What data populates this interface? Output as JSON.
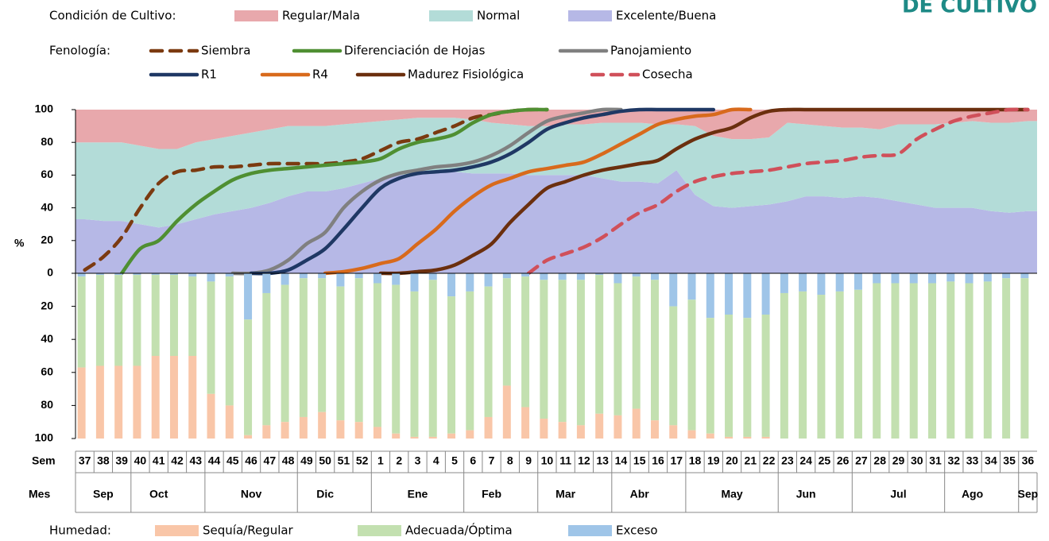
{
  "title_fragment": "DE CULTIVO",
  "chart_data": [
    {
      "type": "area",
      "legend_label": "Condición de Cultivo:",
      "ylabel": "%",
      "ylim": [
        0,
        100
      ],
      "yticks": [
        0,
        20,
        40,
        60,
        80,
        100
      ],
      "series": [
        {
          "name": "Regular/Mala",
          "color": "#e8a8ac",
          "values": [
            20,
            20,
            20,
            22,
            24,
            24,
            20,
            18,
            16,
            14,
            12,
            10,
            10,
            10,
            9,
            8,
            7,
            6,
            5,
            5,
            5,
            6,
            8,
            9,
            10,
            10,
            9,
            9,
            8,
            8,
            8,
            9,
            9,
            10,
            16,
            18,
            18,
            17,
            8,
            9,
            10,
            11,
            11,
            12,
            9,
            9,
            9,
            8,
            7,
            8,
            8,
            7
          ]
        },
        {
          "name": "Normal",
          "color": "#b3dcd8",
          "values": [
            47,
            48,
            48,
            48,
            48,
            46,
            47,
            46,
            46,
            46,
            45,
            43,
            40,
            40,
            39,
            37,
            35,
            34,
            34,
            33,
            33,
            33,
            31,
            30,
            30,
            30,
            31,
            31,
            34,
            36,
            36,
            36,
            28,
            42,
            43,
            42,
            41,
            41,
            48,
            44,
            43,
            43,
            42,
            42,
            47,
            49,
            51,
            52,
            53,
            54,
            55,
            55
          ]
        },
        {
          "name": "Excelente/Buena",
          "color": "#b6b8e6",
          "values": [
            33,
            32,
            32,
            30,
            28,
            30,
            33,
            36,
            38,
            40,
            43,
            47,
            50,
            50,
            52,
            55,
            58,
            60,
            61,
            62,
            62,
            61,
            61,
            61,
            60,
            60,
            60,
            60,
            58,
            56,
            56,
            55,
            63,
            48,
            41,
            40,
            41,
            42,
            44,
            47,
            47,
            46,
            47,
            46,
            44,
            42,
            40,
            40,
            40,
            38,
            37,
            38
          ]
        }
      ]
    },
    {
      "type": "line",
      "legend_label": "Fenología:",
      "series": [
        {
          "name": "Siembra",
          "color": "#7b3a10",
          "dash": true,
          "values": [
            2,
            10,
            22,
            40,
            55,
            62,
            63,
            65,
            65,
            66,
            67,
            67,
            67,
            67,
            68,
            70,
            75,
            80,
            82,
            86,
            90,
            95,
            97,
            99,
            100,
            100,
            null,
            null,
            null,
            null,
            null,
            null,
            null,
            null,
            null,
            null,
            null,
            null,
            null,
            null,
            null,
            null,
            null,
            null,
            null,
            null,
            null,
            null,
            null,
            null,
            null,
            null
          ]
        },
        {
          "name": "Diferenciación de Hojas",
          "color": "#4f8f32",
          "dash": false,
          "values": [
            null,
            null,
            0,
            15,
            20,
            32,
            42,
            50,
            57,
            61,
            63,
            64,
            65,
            66,
            67,
            68,
            70,
            76,
            80,
            82,
            85,
            92,
            97,
            99,
            100,
            100,
            null,
            null,
            null,
            null,
            null,
            null,
            null,
            null,
            null,
            null,
            null,
            null,
            null,
            null,
            null,
            null,
            null,
            null,
            null,
            null,
            null,
            null,
            null,
            null,
            null,
            null
          ]
        },
        {
          "name": "Panojamiento",
          "color": "#808080",
          "dash": false,
          "values": [
            null,
            null,
            null,
            null,
            null,
            null,
            null,
            null,
            0,
            0,
            2,
            8,
            18,
            25,
            40,
            50,
            57,
            61,
            63,
            65,
            66,
            68,
            72,
            78,
            86,
            93,
            96,
            98,
            100,
            100,
            null,
            null,
            null,
            null,
            null,
            null,
            null,
            null,
            null,
            null,
            null,
            null,
            null,
            null,
            null,
            null,
            null,
            null,
            null,
            null,
            null,
            null
          ]
        },
        {
          "name": "R1",
          "color": "#1f3864",
          "dash": false,
          "values": [
            null,
            null,
            null,
            null,
            null,
            null,
            null,
            null,
            null,
            0,
            0,
            2,
            8,
            15,
            27,
            40,
            52,
            58,
            61,
            62,
            63,
            65,
            68,
            73,
            80,
            88,
            92,
            95,
            97,
            99,
            100,
            100,
            100,
            100,
            100,
            null,
            null,
            null,
            null,
            null,
            null,
            null,
            null,
            null,
            null,
            null,
            null,
            null,
            null,
            null,
            null,
            null
          ]
        },
        {
          "name": "R4",
          "color": "#d86a1c",
          "dash": false,
          "values": [
            null,
            null,
            null,
            null,
            null,
            null,
            null,
            null,
            null,
            null,
            null,
            null,
            null,
            0,
            1,
            3,
            6,
            9,
            18,
            27,
            38,
            47,
            54,
            58,
            62,
            64,
            66,
            68,
            73,
            79,
            85,
            91,
            94,
            96,
            97,
            100,
            100,
            null,
            null,
            null,
            null,
            null,
            null,
            null,
            null,
            null,
            null,
            null,
            null,
            null,
            null,
            null
          ]
        },
        {
          "name": "Madurez Fisiológica",
          "color": "#6b2f0e",
          "dash": false,
          "values": [
            null,
            null,
            null,
            null,
            null,
            null,
            null,
            null,
            null,
            null,
            null,
            null,
            null,
            null,
            null,
            null,
            0,
            0,
            1,
            2,
            5,
            11,
            18,
            31,
            42,
            52,
            56,
            60,
            63,
            65,
            67,
            69,
            76,
            82,
            86,
            89,
            95,
            99,
            100,
            100,
            100,
            100,
            100,
            100,
            100,
            100,
            100,
            100,
            100,
            100,
            100,
            100
          ]
        },
        {
          "name": "Cosecha",
          "color": "#d0505a",
          "dash": true,
          "values": [
            null,
            null,
            null,
            null,
            null,
            null,
            null,
            null,
            null,
            null,
            null,
            null,
            null,
            null,
            null,
            null,
            null,
            null,
            null,
            null,
            null,
            null,
            null,
            null,
            0,
            8,
            12,
            16,
            22,
            30,
            37,
            42,
            50,
            56,
            59,
            61,
            62,
            63,
            65,
            67,
            68,
            69,
            71,
            72,
            73,
            82,
            88,
            93,
            96,
            98,
            100,
            100
          ]
        }
      ]
    },
    {
      "type": "bar",
      "legend_label": "Humedad:",
      "xlabel": "Sem",
      "month_label": "Mes",
      "categories": [
        "37",
        "38",
        "39",
        "40",
        "41",
        "42",
        "43",
        "44",
        "45",
        "46",
        "47",
        "48",
        "49",
        "50",
        "51",
        "52",
        "1",
        "2",
        "3",
        "4",
        "5",
        "6",
        "7",
        "8",
        "9",
        "10",
        "11",
        "12",
        "13",
        "14",
        "15",
        "16",
        "17",
        "18",
        "19",
        "20",
        "21",
        "22",
        "23",
        "24",
        "25",
        "26",
        "27",
        "28",
        "29",
        "30",
        "31",
        "32",
        "33",
        "34",
        "35",
        "36"
      ],
      "months": [
        null,
        "Sep",
        null,
        null,
        "Oct",
        null,
        null,
        null,
        null,
        "Nov",
        null,
        null,
        null,
        "Dic",
        null,
        null,
        null,
        null,
        "Ene",
        null,
        null,
        null,
        "Feb",
        null,
        null,
        null,
        "Mar",
        null,
        null,
        null,
        "Abr",
        null,
        null,
        null,
        null,
        "May",
        null,
        null,
        null,
        "Jun",
        null,
        null,
        null,
        null,
        "Jul",
        null,
        null,
        null,
        "Ago",
        null,
        null,
        "Sep"
      ],
      "ylim": [
        0,
        100
      ],
      "yticks": [
        20,
        40,
        60,
        80,
        100
      ],
      "series": [
        {
          "name": "Sequía/Regular",
          "color": "#f9c6a8",
          "values": [
            43,
            44,
            44,
            44,
            50,
            50,
            50,
            27,
            20,
            2,
            8,
            10,
            13,
            16,
            11,
            10,
            7,
            3,
            1,
            1,
            3,
            5,
            13,
            32,
            19,
            12,
            10,
            8,
            15,
            14,
            18,
            11,
            8,
            5,
            3,
            1,
            1,
            1,
            0,
            0,
            0,
            0,
            0,
            0,
            0,
            0,
            0,
            0,
            0,
            0,
            0,
            0
          ]
        },
        {
          "name": "Adecuada/Óptima",
          "color": "#c3e0b0",
          "values": [
            55,
            55,
            55,
            55,
            49,
            49,
            48,
            68,
            78,
            70,
            80,
            83,
            84,
            81,
            81,
            87,
            87,
            90,
            88,
            95,
            83,
            84,
            79,
            65,
            79,
            84,
            86,
            88,
            84,
            80,
            80,
            85,
            72,
            79,
            70,
            74,
            72,
            74,
            88,
            89,
            87,
            89,
            90,
            94,
            94,
            94,
            94,
            95,
            94,
            95,
            97,
            97
          ]
        },
        {
          "name": "Exceso",
          "color": "#9fc5e8",
          "values": [
            2,
            1,
            1,
            1,
            1,
            1,
            2,
            5,
            2,
            28,
            12,
            7,
            3,
            3,
            8,
            3,
            6,
            7,
            11,
            4,
            14,
            11,
            8,
            3,
            2,
            4,
            4,
            4,
            1,
            6,
            2,
            4,
            20,
            16,
            27,
            25,
            27,
            25,
            12,
            11,
            13,
            11,
            10,
            6,
            6,
            6,
            6,
            5,
            6,
            5,
            3,
            3
          ]
        }
      ]
    }
  ]
}
